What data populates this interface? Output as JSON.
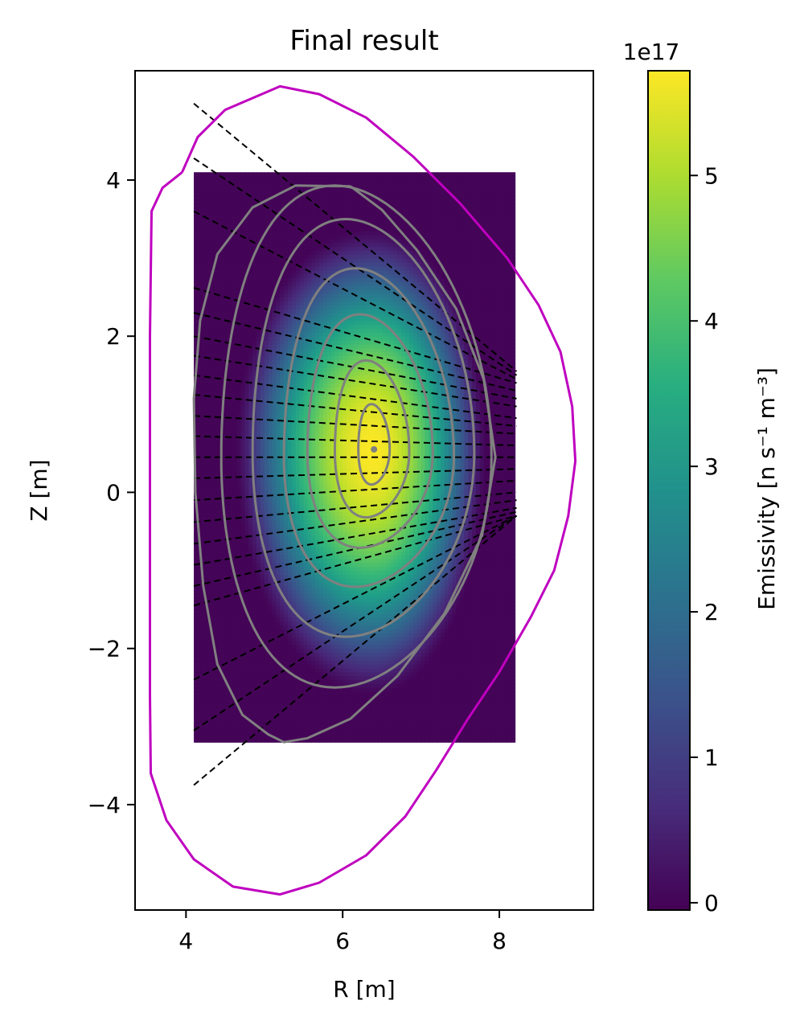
{
  "chart_data": {
    "type": "heatmap",
    "title": "Final result",
    "xlabel": "R [m]",
    "ylabel": "Z [m]",
    "xlim": [
      3.35,
      9.2
    ],
    "ylim": [
      -5.35,
      5.4
    ],
    "xticks": [
      4,
      6,
      8
    ],
    "xtick_labels": [
      "4",
      "6",
      "8"
    ],
    "yticks": [
      -4,
      -2,
      0,
      2,
      4
    ],
    "ytick_labels": [
      "−4",
      "−2",
      "0",
      "2",
      "4"
    ],
    "grid": false,
    "heatmap": {
      "extent": {
        "r": [
          4.1,
          8.2
        ],
        "z": [
          -3.2,
          4.1
        ]
      },
      "cells_r": 82,
      "cells_z": 146,
      "peak_value": 5.7,
      "peak_center": {
        "r": 6.38,
        "z": 0.55
      },
      "colormap": "viridis"
    },
    "colorbar": {
      "label": "Emissivity [n s⁻¹ m⁻³]",
      "multiplier": "1e17",
      "range": [
        -0.05,
        5.72
      ],
      "ticks": [
        0,
        1,
        2,
        3,
        4,
        5
      ],
      "tick_labels": [
        "0",
        "1",
        "2",
        "3",
        "4",
        "5"
      ]
    },
    "magnetic_axis": {
      "r": 6.4,
      "z": 0.55
    },
    "flux_surfaces": [
      {
        "ri": 6.2,
        "ro": 6.6,
        "zc": 0.55,
        "a": 0.58,
        "b": 0.45
      },
      {
        "ri": 5.9,
        "ro": 6.85,
        "zc": 0.52,
        "a": 1.17,
        "b": 0.84
      },
      {
        "ri": 5.55,
        "ro": 7.15,
        "zc": 0.5,
        "a": 1.78,
        "b": 1.21
      },
      {
        "ri": 5.25,
        "ro": 7.42,
        "zc": 0.45,
        "a": 2.42,
        "b": 1.66
      },
      {
        "ri": 4.85,
        "ro": 7.68,
        "zc": 0.5,
        "a": 3.0,
        "b": 2.35
      },
      {
        "ri": 4.45,
        "ro": 7.9,
        "zc": 0.45,
        "a": 3.48,
        "b": 2.95
      }
    ],
    "separatrix": [
      [
        6.1,
        3.92
      ],
      [
        5.4,
        3.93
      ],
      [
        4.85,
        3.65
      ],
      [
        4.4,
        3.05
      ],
      [
        4.18,
        2.2
      ],
      [
        4.1,
        1.2
      ],
      [
        4.12,
        0.0
      ],
      [
        4.22,
        -1.2
      ],
      [
        4.4,
        -2.2
      ],
      [
        4.72,
        -2.85
      ],
      [
        5.05,
        -3.1
      ],
      [
        5.25,
        -3.2
      ],
      [
        5.55,
        -3.15
      ],
      [
        6.1,
        -2.9
      ],
      [
        6.7,
        -2.35
      ],
      [
        7.3,
        -1.55
      ],
      [
        7.78,
        -0.55
      ],
      [
        7.95,
        0.45
      ],
      [
        7.8,
        1.45
      ],
      [
        7.45,
        2.35
      ],
      [
        6.95,
        3.1
      ],
      [
        6.5,
        3.62
      ],
      [
        6.1,
        3.92
      ]
    ],
    "vessel_wall": [
      [
        3.95,
        4.1
      ],
      [
        4.15,
        4.55
      ],
      [
        4.5,
        4.9
      ],
      [
        5.2,
        5.2
      ],
      [
        5.7,
        5.1
      ],
      [
        6.3,
        4.8
      ],
      [
        6.9,
        4.3
      ],
      [
        7.5,
        3.7
      ],
      [
        8.1,
        3.0
      ],
      [
        8.5,
        2.4
      ],
      [
        8.78,
        1.8
      ],
      [
        8.93,
        1.1
      ],
      [
        8.97,
        0.4
      ],
      [
        8.88,
        -0.3
      ],
      [
        8.7,
        -1.0
      ],
      [
        8.4,
        -1.6
      ],
      [
        8.0,
        -2.3
      ],
      [
        7.6,
        -2.9
      ],
      [
        7.2,
        -3.55
      ],
      [
        6.8,
        -4.15
      ],
      [
        6.3,
        -4.65
      ],
      [
        5.7,
        -5.0
      ],
      [
        5.2,
        -5.15
      ],
      [
        4.6,
        -5.05
      ],
      [
        4.1,
        -4.7
      ],
      [
        3.75,
        -4.2
      ],
      [
        3.55,
        -3.6
      ],
      [
        3.54,
        -2.6
      ],
      [
        3.54,
        -1.0
      ],
      [
        3.54,
        0.5
      ],
      [
        3.54,
        2.0
      ],
      [
        3.56,
        3.6
      ],
      [
        3.7,
        3.9
      ],
      [
        3.95,
        4.1
      ]
    ],
    "chords": [
      {
        "r0": 4.1,
        "z0": 4.98,
        "r1": 8.22,
        "z1": 1.55
      },
      {
        "r0": 4.1,
        "z0": 4.28,
        "r1": 8.22,
        "z1": 1.5
      },
      {
        "r0": 4.1,
        "z0": 3.6,
        "r1": 8.22,
        "z1": 1.45
      },
      {
        "r0": 4.1,
        "z0": 2.62,
        "r1": 8.22,
        "z1": 1.4
      },
      {
        "r0": 4.1,
        "z0": 2.3,
        "r1": 8.22,
        "z1": 1.3
      },
      {
        "r0": 4.1,
        "z0": 2.0,
        "r1": 8.22,
        "z1": 1.2
      },
      {
        "r0": 4.1,
        "z0": 1.75,
        "r1": 8.22,
        "z1": 1.1
      },
      {
        "r0": 4.1,
        "z0": 1.5,
        "r1": 8.22,
        "z1": 0.95
      },
      {
        "r0": 4.1,
        "z0": 1.25,
        "r1": 8.22,
        "z1": 0.85
      },
      {
        "r0": 4.1,
        "z0": 0.98,
        "r1": 8.22,
        "z1": 0.75
      },
      {
        "r0": 4.1,
        "z0": 0.72,
        "r1": 8.22,
        "z1": 0.6
      },
      {
        "r0": 4.1,
        "z0": 0.45,
        "r1": 8.22,
        "z1": 0.45
      },
      {
        "r0": 4.1,
        "z0": 0.18,
        "r1": 8.22,
        "z1": 0.3
      },
      {
        "r0": 4.1,
        "z0": -0.1,
        "r1": 8.22,
        "z1": 0.15
      },
      {
        "r0": 4.1,
        "z0": -0.38,
        "r1": 8.22,
        "z1": 0.0
      },
      {
        "r0": 4.1,
        "z0": -0.66,
        "r1": 8.22,
        "z1": -0.1
      },
      {
        "r0": 4.1,
        "z0": -0.93,
        "r1": 8.22,
        "z1": -0.2
      },
      {
        "r0": 4.1,
        "z0": -1.2,
        "r1": 8.22,
        "z1": -0.25
      },
      {
        "r0": 4.1,
        "z0": -1.45,
        "r1": 8.22,
        "z1": -0.3
      },
      {
        "r0": 4.1,
        "z0": -2.4,
        "r1": 8.22,
        "z1": -0.3
      },
      {
        "r0": 4.1,
        "z0": -3.05,
        "r1": 8.22,
        "z1": -0.3
      },
      {
        "r0": 4.1,
        "z0": -3.75,
        "r1": 8.22,
        "z1": -0.3
      }
    ],
    "colors": {
      "vessel_wall": "#bf00bf",
      "flux_surfaces": "#808080",
      "chords": "#000000",
      "background": "#ffffff"
    }
  }
}
